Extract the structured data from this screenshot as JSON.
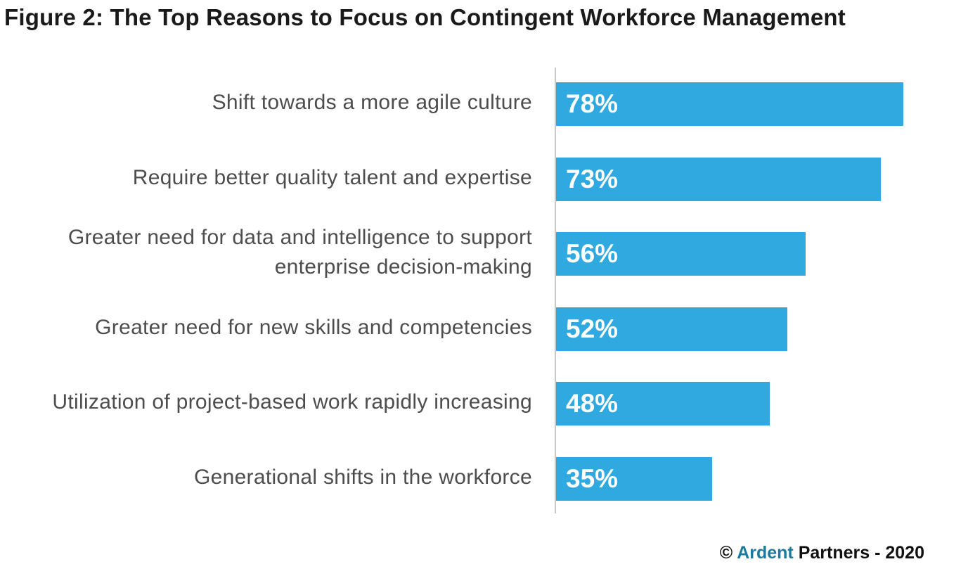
{
  "chart_data": {
    "type": "bar",
    "orientation": "horizontal",
    "title": "Figure 2: The Top Reasons to Focus on Contingent Workforce Management",
    "categories": [
      [
        "Shift towards a more agile culture"
      ],
      [
        "Require better quality talent and expertise"
      ],
      [
        "Greater need for data and intelligence to support",
        "enterprise decision-making"
      ],
      [
        "Greater need for new skills and competencies"
      ],
      [
        "Utilization of project-based work rapidly increasing"
      ],
      [
        "Generational shifts in the workforce"
      ]
    ],
    "values": [
      78,
      73,
      56,
      52,
      48,
      35
    ],
    "value_labels": [
      "78%",
      "73%",
      "56%",
      "52%",
      "48%",
      "35%"
    ],
    "xlim": [
      0,
      100
    ],
    "unit": "%",
    "bar_color": "#2fa9e0",
    "grid": false,
    "legend": "none"
  },
  "footer": {
    "copyright_symbol": "©",
    "brand": "Ardent",
    "rest": "Partners - 2020"
  }
}
